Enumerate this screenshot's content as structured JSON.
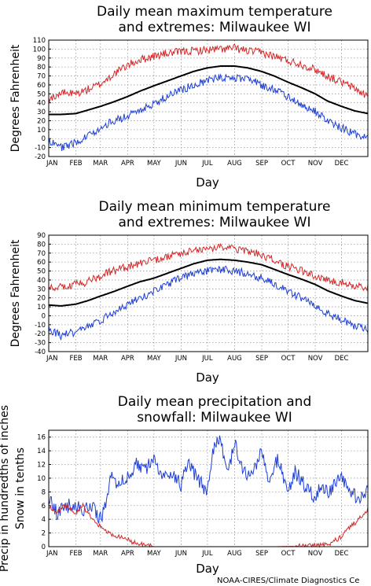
{
  "credit": "NOAA-CIRES/Climate Diagnostics Ce",
  "chart_data": [
    {
      "type": "line",
      "title": [
        "Daily mean maximum temperature",
        "and extremes: Milwaukee WI"
      ],
      "xlabel": "Day",
      "ylabel": "Degrees Fahrenheit",
      "ylim": [
        -20,
        110
      ],
      "yticks": [
        -20,
        -10,
        0,
        10,
        20,
        30,
        40,
        50,
        60,
        70,
        80,
        90,
        100,
        110
      ],
      "xlim": [
        1,
        365
      ],
      "month_labels": [
        "JAN",
        "FEB",
        "MAR",
        "APR",
        "MAY",
        "JUN",
        "JUL",
        "AUG",
        "SEP",
        "OCT",
        "NOV",
        "DEC"
      ],
      "month_starts": [
        1,
        32,
        60,
        91,
        121,
        152,
        182,
        213,
        244,
        274,
        305,
        335
      ],
      "grid": true,
      "series": [
        {
          "color": "#d62728",
          "x": [
            1,
            15,
            32,
            46,
            60,
            75,
            91,
            105,
            121,
            135,
            152,
            166,
            182,
            197,
            213,
            228,
            244,
            258,
            274,
            289,
            305,
            319,
            335,
            350,
            365
          ],
          "y": [
            44,
            51,
            50,
            55,
            61,
            72,
            82,
            88,
            92,
            95,
            97,
            98,
            99,
            100,
            101,
            98,
            96,
            92,
            87,
            83,
            77,
            70,
            63,
            56,
            47
          ]
        },
        {
          "color": "#000000",
          "x": [
            1,
            15,
            32,
            46,
            60,
            75,
            91,
            105,
            121,
            135,
            152,
            166,
            182,
            197,
            213,
            228,
            244,
            258,
            274,
            289,
            305,
            319,
            335,
            350,
            365
          ],
          "y": [
            27,
            27,
            28,
            32,
            36,
            41,
            47,
            53,
            59,
            64,
            70,
            75,
            79,
            81,
            81,
            79,
            75,
            70,
            63,
            57,
            50,
            42,
            36,
            31,
            28
          ]
        },
        {
          "color": "#1f3fd6",
          "x": [
            1,
            15,
            32,
            46,
            60,
            75,
            91,
            105,
            121,
            135,
            152,
            166,
            182,
            197,
            213,
            228,
            244,
            258,
            274,
            289,
            305,
            319,
            335,
            350,
            365
          ],
          "y": [
            -2,
            -10,
            -5,
            3,
            12,
            20,
            25,
            32,
            38,
            47,
            54,
            60,
            65,
            68,
            68,
            66,
            60,
            55,
            46,
            38,
            30,
            20,
            12,
            5,
            0
          ]
        }
      ]
    },
    {
      "type": "line",
      "title": [
        "Daily mean minimum temperature",
        "and extremes: Milwaukee WI"
      ],
      "xlabel": "Day",
      "ylabel": "Degrees Fahrenheit",
      "ylim": [
        -40,
        90
      ],
      "yticks": [
        -40,
        -30,
        -20,
        -10,
        0,
        10,
        20,
        30,
        40,
        50,
        60,
        70,
        80,
        90
      ],
      "xlim": [
        1,
        365
      ],
      "month_labels": [
        "JAN",
        "FEB",
        "MAR",
        "APR",
        "MAY",
        "JUN",
        "JUL",
        "AUG",
        "SEP",
        "OCT",
        "NOV",
        "DEC"
      ],
      "month_starts": [
        1,
        32,
        60,
        91,
        121,
        152,
        182,
        213,
        244,
        274,
        305,
        335
      ],
      "grid": true,
      "series": [
        {
          "color": "#d62728",
          "x": [
            1,
            15,
            32,
            46,
            60,
            75,
            91,
            105,
            121,
            135,
            152,
            166,
            182,
            197,
            213,
            228,
            244,
            258,
            274,
            289,
            305,
            319,
            335,
            350,
            365
          ],
          "y": [
            30,
            33,
            35,
            38,
            45,
            50,
            55,
            58,
            62,
            66,
            70,
            73,
            75,
            76,
            75,
            72,
            68,
            62,
            55,
            50,
            45,
            40,
            37,
            34,
            32
          ]
        },
        {
          "color": "#000000",
          "x": [
            1,
            15,
            32,
            46,
            60,
            75,
            91,
            105,
            121,
            135,
            152,
            166,
            182,
            197,
            213,
            228,
            244,
            258,
            274,
            289,
            305,
            319,
            335,
            350,
            365
          ],
          "y": [
            12,
            11,
            13,
            17,
            22,
            27,
            33,
            38,
            42,
            47,
            53,
            58,
            62,
            63,
            62,
            60,
            57,
            52,
            46,
            41,
            35,
            28,
            22,
            17,
            14
          ]
        },
        {
          "color": "#1f3fd6",
          "x": [
            1,
            15,
            32,
            46,
            60,
            75,
            91,
            105,
            121,
            135,
            152,
            166,
            182,
            197,
            213,
            228,
            244,
            258,
            274,
            289,
            305,
            319,
            335,
            350,
            365
          ],
          "y": [
            -15,
            -22,
            -18,
            -12,
            -5,
            3,
            12,
            20,
            27,
            35,
            42,
            47,
            50,
            52,
            50,
            47,
            42,
            35,
            28,
            20,
            12,
            3,
            -5,
            -12,
            -15
          ]
        }
      ]
    },
    {
      "type": "line",
      "title": [
        "Daily mean precipitation and",
        "snowfall: Milwaukee WI"
      ],
      "xlabel": "Day",
      "ylabel": [
        "Precip in hundredths of inches",
        "Snow in tenths"
      ],
      "ylim": [
        0,
        17
      ],
      "yticks": [
        0,
        2,
        4,
        6,
        8,
        10,
        12,
        14,
        16
      ],
      "xlim": [
        1,
        365
      ],
      "month_labels": [
        "JAN",
        "FEB",
        "MAR",
        "APR",
        "MAY",
        "JUN",
        "JUL",
        "AUG",
        "SEP",
        "OCT",
        "NOV",
        "DEC"
      ],
      "month_starts": [
        1,
        32,
        60,
        91,
        121,
        152,
        182,
        213,
        244,
        274,
        305,
        335
      ],
      "grid": true,
      "series": [
        {
          "color": "#1f3fd6",
          "x": [
            1,
            10,
            20,
            32,
            40,
            50,
            60,
            66,
            72,
            80,
            91,
            100,
            110,
            121,
            130,
            140,
            152,
            160,
            170,
            182,
            188,
            195,
            205,
            213,
            220,
            230,
            244,
            252,
            262,
            274,
            282,
            292,
            305,
            312,
            320,
            335,
            345,
            355,
            365
          ],
          "y": [
            7,
            5,
            6,
            6,
            5,
            6,
            4,
            6,
            11,
            9,
            10,
            12,
            11,
            13,
            10,
            11,
            9,
            12,
            10,
            8,
            14,
            16,
            11,
            15,
            12,
            10,
            14,
            9,
            13,
            8,
            11,
            9,
            7,
            9,
            8,
            10,
            8,
            7,
            8
          ]
        },
        {
          "color": "#d62728",
          "x": [
            1,
            10,
            20,
            32,
            40,
            50,
            60,
            70,
            80,
            91,
            100,
            110,
            121,
            140,
            200,
            260,
            300,
            320,
            335,
            345,
            355,
            365
          ],
          "y": [
            6,
            5,
            6,
            5,
            6,
            4,
            3,
            2,
            1.5,
            1,
            0.5,
            0.2,
            0,
            0,
            0,
            0,
            0.1,
            0.3,
            1.5,
            3,
            4,
            5.5
          ]
        }
      ]
    }
  ]
}
